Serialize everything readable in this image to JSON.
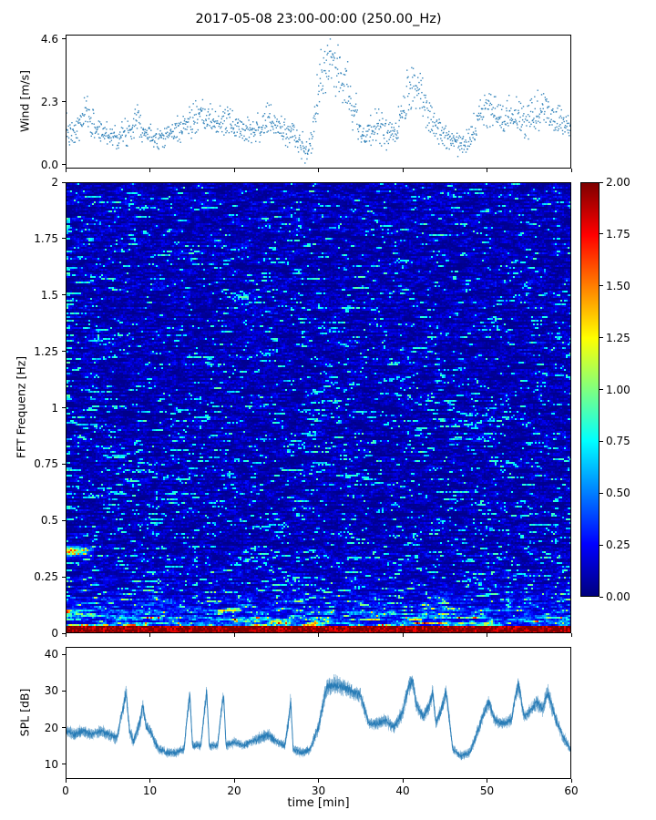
{
  "title": "2017-05-08 23:00-00:00 (250.00_Hz)",
  "background": "#ffffff",
  "accent_color": "#1f77b4",
  "xaxis": {
    "label": "time [min]",
    "range": [
      0,
      60
    ],
    "ticks": [
      0,
      10,
      20,
      30,
      40,
      50,
      60
    ],
    "tick_labels": [
      "0",
      "10",
      "20",
      "30",
      "40",
      "50",
      "60"
    ]
  },
  "colorbar": {
    "colormap": "jet",
    "vmin": 0,
    "vmax": 2,
    "ticks": [
      0,
      0.25,
      0.5,
      0.75,
      1.0,
      1.25,
      1.5,
      1.75,
      2.0
    ],
    "tick_labels": [
      "0.00",
      "0.25",
      "0.50",
      "0.75",
      "1.00",
      "1.25",
      "1.50",
      "1.75",
      "2.00"
    ]
  },
  "chart_data": [
    {
      "id": "wind",
      "type": "scatter",
      "ylabel": "Wind [m/s]",
      "ylim": [
        -0.15,
        4.75
      ],
      "yticks": [
        0.0,
        2.3,
        4.6
      ],
      "ytick_labels": [
        "0.0",
        "2.3",
        "4.6"
      ],
      "marker_color": "#1f77b4",
      "n_points": 1300,
      "seed": 7,
      "envelope": {
        "x": [
          0,
          0.5,
          1,
          2,
          2.5,
          3,
          4,
          5,
          6,
          7,
          8,
          8.5,
          9,
          10,
          11,
          12,
          13,
          14,
          15,
          16,
          17,
          18,
          19,
          20,
          21,
          22,
          23,
          24,
          25,
          26,
          27,
          28,
          28.7,
          29.3,
          30,
          30.7,
          31.2,
          32,
          32.7,
          33.3,
          34,
          35,
          35.7,
          36.3,
          37,
          38,
          39,
          39.7,
          40.5,
          41.3,
          42,
          43,
          44,
          45,
          46,
          47,
          48,
          49,
          50,
          51,
          52,
          53,
          54,
          55,
          56,
          57,
          58,
          59,
          60
        ],
        "mean": [
          1.3,
          1.0,
          1.1,
          1.7,
          1.9,
          1.5,
          1.2,
          1.1,
          1.0,
          1.1,
          1.5,
          1.9,
          1.3,
          1.0,
          1.0,
          1.1,
          1.2,
          1.4,
          1.6,
          1.7,
          1.6,
          1.5,
          1.6,
          1.4,
          1.3,
          1.3,
          1.3,
          1.6,
          1.4,
          1.2,
          1.1,
          0.7,
          0.3,
          1.1,
          2.6,
          3.6,
          3.8,
          3.3,
          3.6,
          3.0,
          2.2,
          1.3,
          0.9,
          1.2,
          1.5,
          1.2,
          0.9,
          1.5,
          2.4,
          2.9,
          2.5,
          2.0,
          1.3,
          1.0,
          0.9,
          0.8,
          1.0,
          1.5,
          2.1,
          1.8,
          1.7,
          1.9,
          1.7,
          1.6,
          1.9,
          2.1,
          1.7,
          1.6,
          1.3
        ],
        "spread": [
          0.25,
          0.25,
          0.25,
          0.3,
          0.3,
          0.3,
          0.25,
          0.25,
          0.2,
          0.25,
          0.3,
          0.3,
          0.25,
          0.2,
          0.2,
          0.2,
          0.25,
          0.25,
          0.3,
          0.3,
          0.3,
          0.25,
          0.3,
          0.25,
          0.25,
          0.25,
          0.25,
          0.3,
          0.25,
          0.25,
          0.25,
          0.25,
          0.2,
          0.3,
          0.5,
          0.55,
          0.5,
          0.5,
          0.5,
          0.5,
          0.45,
          0.3,
          0.25,
          0.3,
          0.3,
          0.3,
          0.25,
          0.35,
          0.45,
          0.4,
          0.4,
          0.35,
          0.3,
          0.25,
          0.25,
          0.25,
          0.25,
          0.3,
          0.35,
          0.3,
          0.3,
          0.3,
          0.3,
          0.3,
          0.35,
          0.3,
          0.3,
          0.3,
          0.3
        ]
      }
    },
    {
      "id": "spectrogram",
      "type": "heatmap",
      "ylabel": "FFT Frequenz [Hz]",
      "ylim": [
        0,
        2
      ],
      "yticks": [
        0,
        0.25,
        0.5,
        0.75,
        1.0,
        1.25,
        1.5,
        1.75,
        2.0
      ],
      "ytick_labels": [
        "0",
        "0.25",
        "0.5",
        "0.75",
        "1",
        "1.25",
        "1.5",
        "1.75",
        "2"
      ],
      "colormap": "jet",
      "vmin": 0,
      "vmax": 2,
      "seed": 12,
      "features": {
        "decay": 0.085,
        "low_band": {
          "f_max": 0.03,
          "value": 1.75
        },
        "left_streak": {
          "t_max": 3.5,
          "f_center": 0.365,
          "f_sigma": 0.02,
          "strength": 1.4
        }
      }
    },
    {
      "id": "spl",
      "type": "line",
      "ylabel": "SPL [dB]",
      "ylim": [
        6,
        42
      ],
      "yticks": [
        10,
        20,
        30,
        40
      ],
      "ytick_labels": [
        "10",
        "20",
        "30",
        "40"
      ],
      "line_color": "#1f77b4",
      "seed": 3,
      "envelope": {
        "x": [
          0,
          1,
          2,
          3,
          4,
          5,
          6,
          6.8,
          7.1,
          7.5,
          8,
          8.8,
          9.1,
          9.5,
          10,
          10.5,
          11,
          12,
          13,
          14,
          14.4,
          14.7,
          15,
          16,
          16.4,
          16.7,
          17,
          18,
          18.4,
          18.7,
          19,
          20,
          21,
          22,
          23,
          24,
          25,
          26,
          26.4,
          26.7,
          27,
          28,
          29,
          29.5,
          30,
          30.5,
          31,
          32,
          33,
          34,
          35,
          35.5,
          36,
          37,
          38,
          39,
          40,
          40.7,
          41.2,
          41.7,
          42.5,
          43.2,
          43.6,
          44,
          44.8,
          45.2,
          45.6,
          46,
          47,
          48,
          49,
          49.7,
          50.3,
          51,
          52,
          53,
          53.4,
          53.8,
          54.5,
          55,
          56,
          56.7,
          57.3,
          58,
          59,
          60
        ],
        "mean": [
          19,
          18,
          19,
          18,
          19,
          18,
          17,
          26,
          30,
          19,
          16,
          22,
          26,
          20,
          19,
          16,
          14,
          13,
          13,
          14,
          24,
          29,
          15,
          15,
          24,
          30,
          15,
          15,
          24,
          29,
          15,
          16,
          15,
          16,
          17,
          18,
          16,
          15,
          21,
          27,
          14,
          13,
          14,
          17,
          20,
          26,
          31,
          32,
          31,
          30,
          29,
          25,
          21,
          21,
          22,
          20,
          24,
          31,
          33,
          26,
          23,
          26,
          30,
          21,
          26,
          30,
          22,
          14,
          12,
          13,
          19,
          24,
          27,
          22,
          21,
          22,
          28,
          32,
          23,
          24,
          27,
          25,
          30,
          24,
          18,
          14
        ],
        "spread": [
          2,
          2,
          2,
          2,
          2,
          2,
          2,
          2.5,
          3,
          2,
          2,
          2.5,
          2.5,
          2,
          2,
          2,
          1.5,
          1.5,
          1.5,
          1.5,
          2.5,
          3,
          1.5,
          1.5,
          2.5,
          3,
          1.5,
          1.5,
          2.5,
          3,
          1.5,
          1.5,
          1.5,
          1.5,
          2,
          2,
          1.5,
          1.5,
          2.5,
          3,
          1.5,
          1.5,
          1.5,
          2,
          2.5,
          3,
          3,
          3,
          3,
          2.5,
          2.5,
          2.5,
          2,
          2,
          2,
          2,
          2.5,
          3,
          3,
          2.5,
          2,
          2.5,
          3,
          2,
          2.5,
          3,
          2,
          1.5,
          1.5,
          1.5,
          2,
          2.5,
          2.5,
          2,
          2,
          2,
          2.5,
          3,
          2,
          2,
          2.5,
          2.5,
          3,
          2.5,
          2,
          1.5
        ]
      }
    }
  ]
}
